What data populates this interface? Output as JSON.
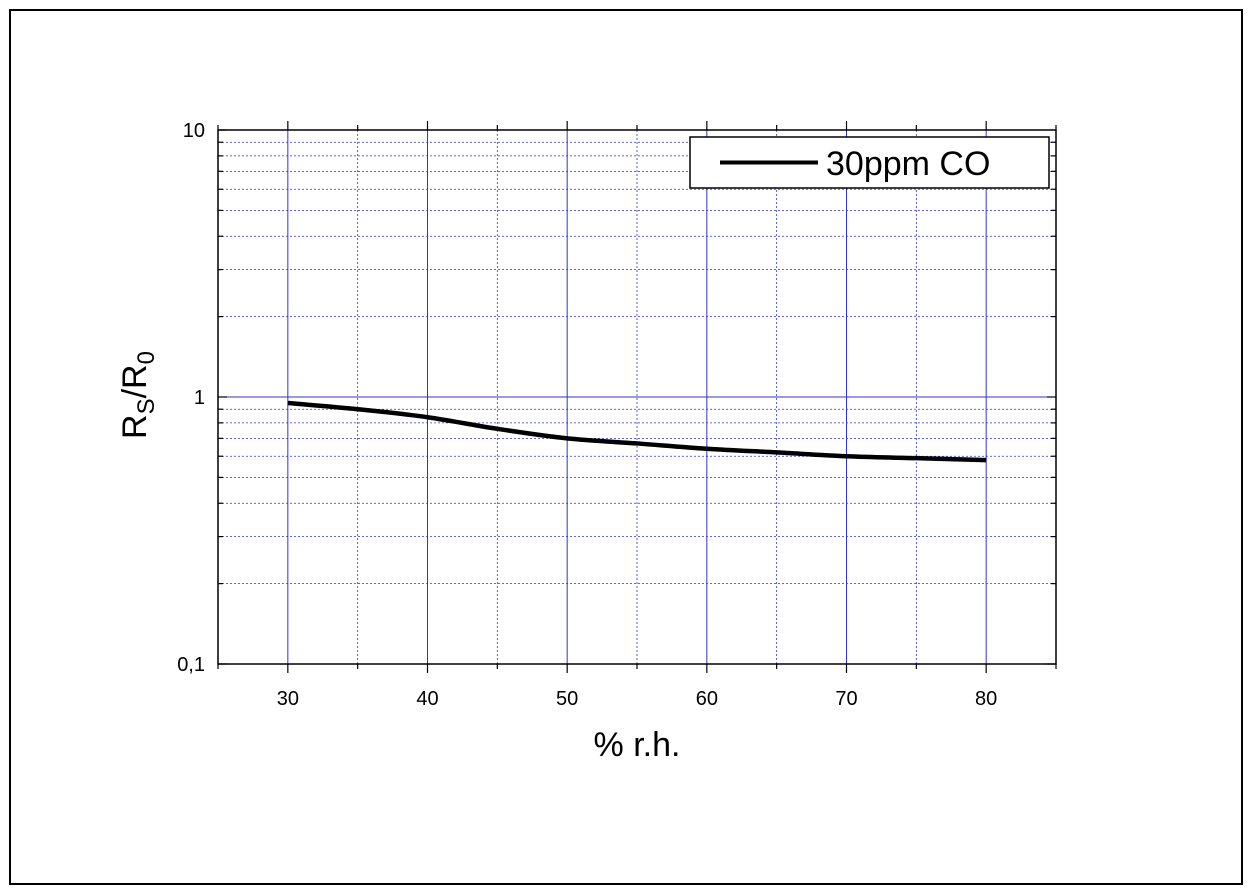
{
  "chart_data": {
    "type": "line",
    "title": "",
    "xlabel": "% r.h.",
    "ylabel": {
      "main": "R",
      "sub1": "S",
      "sep": "/R",
      "sub2": "0"
    },
    "xlim": [
      25,
      85
    ],
    "ylim": [
      0.1,
      10
    ],
    "yscale": "log",
    "grid": true,
    "legend_position": "top-right",
    "x_ticks": [
      "30",
      "40",
      "50",
      "60",
      "70",
      "80"
    ],
    "x_tick_values": [
      30,
      40,
      50,
      60,
      70,
      80
    ],
    "y_ticks": [
      "0,1",
      "1",
      "10"
    ],
    "y_tick_values": [
      0.1,
      1,
      10
    ],
    "series": [
      {
        "name": "30ppm CO",
        "color": "#000000",
        "x": [
          30,
          35,
          40,
          45,
          50,
          55,
          60,
          65,
          70,
          75,
          80
        ],
        "y": [
          0.95,
          0.9,
          0.84,
          0.76,
          0.7,
          0.67,
          0.64,
          0.62,
          0.6,
          0.59,
          0.58
        ]
      }
    ],
    "colors": {
      "grid": "#3333cc",
      "axis": "#000000"
    }
  }
}
